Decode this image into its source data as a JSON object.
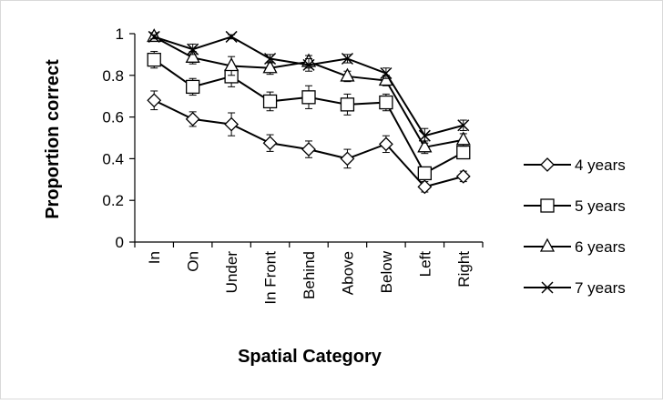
{
  "chart_data": {
    "type": "line",
    "xlabel": "Spatial Category",
    "ylabel": "Proportion correct",
    "ylim": [
      0,
      1
    ],
    "yticks": [
      0,
      0.2,
      0.4,
      0.6,
      0.8,
      1
    ],
    "ytick_labels": [
      "0",
      "0.2",
      "0.4",
      "0.6",
      "0.8",
      "1"
    ],
    "categories": [
      "In",
      "On",
      "Under",
      "In Front",
      "Behind",
      "Above",
      "Below",
      "Left",
      "Right"
    ],
    "grid": false,
    "legend_position": "right",
    "series": [
      {
        "name": "4 years",
        "marker": "diamond",
        "values": [
          0.68,
          0.59,
          0.565,
          0.475,
          0.445,
          0.4,
          0.47,
          0.265,
          0.315
        ],
        "error": [
          0.045,
          0.035,
          0.055,
          0.04,
          0.04,
          0.045,
          0.04,
          0.025,
          0.025
        ]
      },
      {
        "name": "5 years",
        "marker": "square",
        "values": [
          0.875,
          0.745,
          0.795,
          0.675,
          0.695,
          0.66,
          0.67,
          0.33,
          0.43
        ],
        "error": [
          0.04,
          0.04,
          0.05,
          0.045,
          0.055,
          0.05,
          0.04,
          0.03,
          0.03
        ]
      },
      {
        "name": "6 years",
        "marker": "triangle",
        "values": [
          0.985,
          0.885,
          0.845,
          0.835,
          0.865,
          0.795,
          0.775,
          0.455,
          0.49
        ],
        "error": [
          0.02,
          0.03,
          0.045,
          0.03,
          0.03,
          0.025,
          0.025,
          0.03,
          0.03
        ]
      },
      {
        "name": "7 years",
        "marker": "x",
        "values": [
          0.985,
          0.925,
          0.985,
          0.88,
          0.85,
          0.88,
          0.81,
          0.51,
          0.56
        ],
        "error": [
          0.01,
          0.025,
          0.01,
          0.02,
          0.03,
          0.02,
          0.025,
          0.035,
          0.025
        ]
      }
    ]
  }
}
